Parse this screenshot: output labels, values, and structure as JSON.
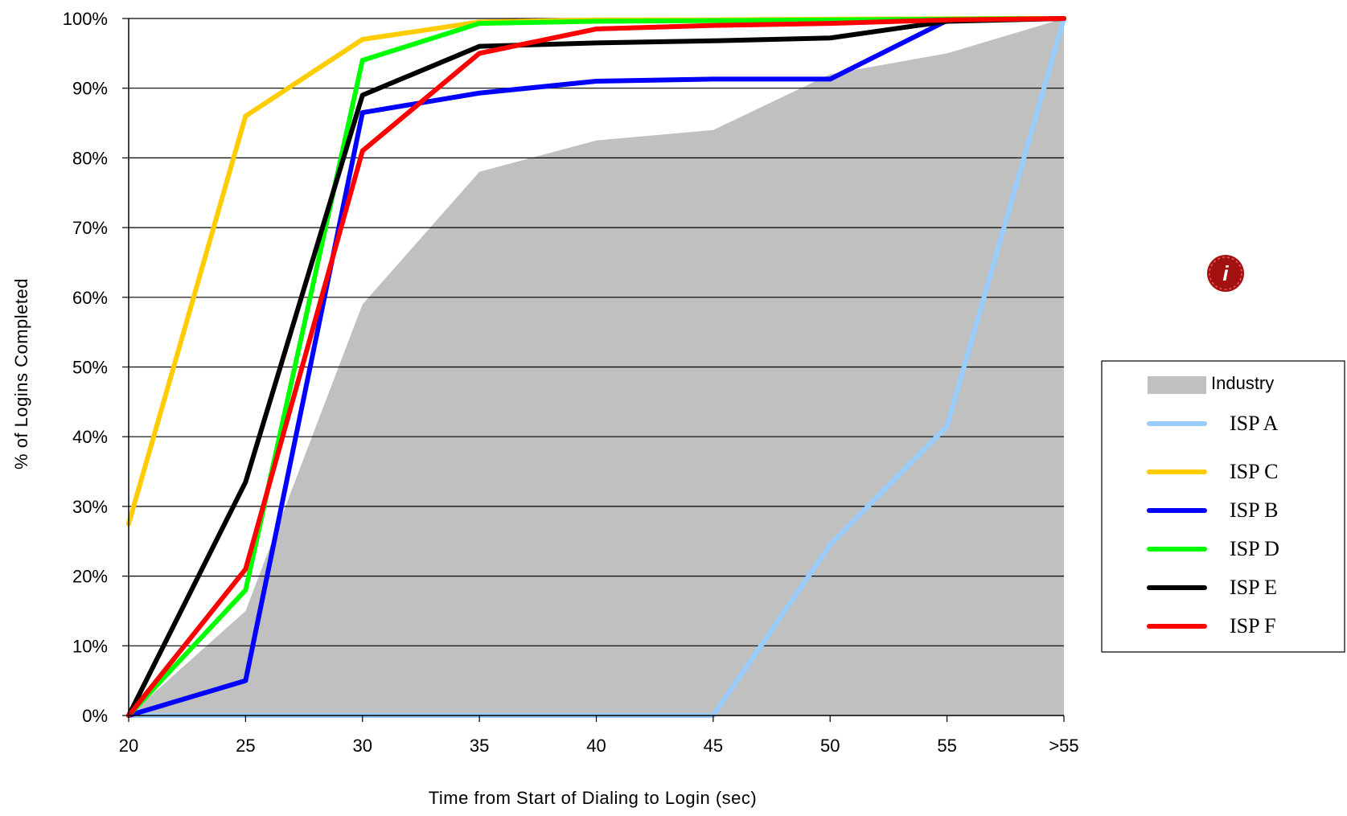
{
  "chart_data": {
    "type": "line",
    "title": "",
    "xlabel": "Time from Start of Dialing to Login (sec)",
    "ylabel": "% of Logins Completed",
    "categories": [
      "20",
      "25",
      "30",
      "35",
      "40",
      "45",
      "50",
      "55",
      ">55"
    ],
    "ylim": [
      0,
      100
    ],
    "y_ticks": [
      "0%",
      "10%",
      "20%",
      "30%",
      "40%",
      "50%",
      "60%",
      "70%",
      "80%",
      "90%",
      "100%"
    ],
    "grid": "horizontal",
    "legend_position": "right",
    "series": [
      {
        "name": "Industry",
        "kind": "area",
        "color": "#c0c0c0",
        "values": [
          0,
          15,
          59,
          78,
          82.5,
          84,
          92,
          95,
          100
        ]
      },
      {
        "name": "ISP A",
        "kind": "line",
        "color": "#99ccff",
        "values": [
          0,
          0,
          0,
          0,
          0,
          0,
          24.5,
          41.5,
          100
        ]
      },
      {
        "name": "ISP C",
        "kind": "line",
        "color": "#ffcc00",
        "values": [
          27.5,
          86,
          97,
          99.5,
          99.8,
          99.8,
          99.9,
          99.95,
          100
        ]
      },
      {
        "name": "ISP B",
        "kind": "line",
        "color": "#0000ff",
        "values": [
          0,
          5,
          86.5,
          89.3,
          91,
          91.3,
          91.3,
          99.7,
          100
        ]
      },
      {
        "name": "ISP D",
        "kind": "line",
        "color": "#00ff00",
        "values": [
          0,
          18,
          94,
          99.3,
          99.6,
          99.7,
          99.8,
          99.9,
          100
        ]
      },
      {
        "name": "ISP E",
        "kind": "line",
        "color": "#000000",
        "values": [
          0,
          33.5,
          89,
          96,
          96.5,
          96.8,
          97.2,
          99.6,
          100
        ]
      },
      {
        "name": "ISP F",
        "kind": "line",
        "color": "#ff0000",
        "values": [
          0,
          21,
          81,
          95,
          98.5,
          99,
          99.3,
          99.8,
          100
        ]
      }
    ]
  },
  "legend": {
    "items": [
      {
        "label": "Industry",
        "color": "#c0c0c0",
        "swatch": "area"
      },
      {
        "label": "ISP A",
        "color": "#99ccff",
        "swatch": "line"
      },
      {
        "label": "ISP C",
        "color": "#ffcc00",
        "swatch": "line"
      },
      {
        "label": "ISP B",
        "color": "#0000ff",
        "swatch": "line"
      },
      {
        "label": "ISP D",
        "color": "#00ff00",
        "swatch": "line"
      },
      {
        "label": "ISP E",
        "color": "#000000",
        "swatch": "line"
      },
      {
        "label": "ISP F",
        "color": "#ff0000",
        "swatch": "line"
      }
    ]
  },
  "badge": {
    "icon": "info-seal-icon",
    "color": "#a31010"
  }
}
